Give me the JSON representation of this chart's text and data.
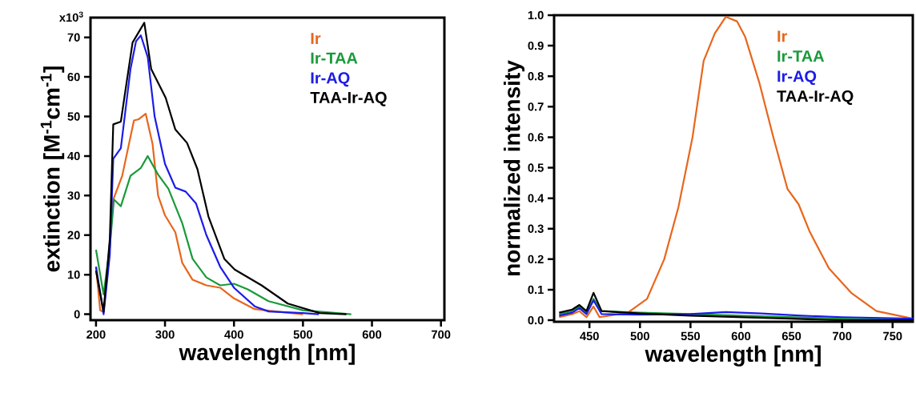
{
  "chart_data": [
    {
      "type": "line",
      "xlabel": "wavelength [nm]",
      "ylabel": "extinction [M$^{-1}$cm$^{-1}$]",
      "xlim": [
        192,
        705
      ],
      "ylim": [
        -1.5,
        75
      ],
      "xticks": [
        200,
        300,
        400,
        500,
        600,
        700
      ],
      "yticks": [
        0,
        10,
        20,
        30,
        40,
        50,
        60,
        70
      ],
      "annotations": [
        "x10$^{3}$"
      ],
      "legend": "top right",
      "line_style": "solid",
      "series": [
        {
          "name": "Ir",
          "color": "#e8661c",
          "x": [
            200,
            206,
            211,
            220,
            225,
            238,
            255,
            262,
            272,
            282,
            290,
            300,
            315,
            325,
            340,
            360,
            380,
            400,
            430,
            460,
            500
          ],
          "values": [
            12,
            1,
            0.5,
            18,
            29,
            35,
            49,
            49.3,
            50.7,
            43,
            30,
            25,
            20.7,
            13,
            8.7,
            7.3,
            6.7,
            4,
            1.3,
            0.7,
            0
          ]
        },
        {
          "name": "Ir-TAA",
          "color": "#1a9a3a",
          "x": [
            200,
            211,
            220,
            226,
            236,
            250,
            265,
            275,
            290,
            305,
            325,
            340,
            360,
            380,
            400,
            420,
            450,
            500,
            570
          ],
          "values": [
            16.3,
            5,
            17,
            29,
            27.3,
            35,
            37,
            40,
            35.3,
            31.7,
            23,
            14,
            9.3,
            7.3,
            7.7,
            6.3,
            3.3,
            1,
            0
          ]
        },
        {
          "name": "Ir-AQ",
          "color": "#1c1ce8",
          "x": [
            200,
            211,
            220,
            225,
            236,
            250,
            258,
            265,
            275,
            285,
            300,
            315,
            330,
            345,
            360,
            380,
            400,
            430,
            450,
            500,
            523
          ],
          "values": [
            12,
            0,
            15,
            39.3,
            42,
            62,
            69,
            70.5,
            65,
            50,
            38,
            32,
            31,
            28,
            20,
            12,
            6.7,
            2,
            0.7,
            0.3,
            0
          ]
        },
        {
          "name": "TAA-Ir-AQ",
          "color": "#000000",
          "x": [
            200,
            211,
            220,
            225,
            236,
            243,
            253,
            270,
            280,
            301,
            315,
            332,
            347,
            363,
            386,
            401,
            440,
            478,
            524,
            563
          ],
          "values": [
            11,
            0.7,
            19,
            48,
            48.7,
            57,
            68.7,
            73.7,
            62,
            54.7,
            46.7,
            43.3,
            36.7,
            24.7,
            14,
            11.3,
            7.3,
            2.7,
            0.3,
            0
          ]
        }
      ]
    },
    {
      "type": "line",
      "xlabel": "wavelength [nm]",
      "ylabel": "normalized intensity",
      "xlim": [
        415,
        770
      ],
      "ylim": [
        -0.005,
        1.0
      ],
      "xticks": [
        450,
        500,
        550,
        600,
        650,
        700,
        750
      ],
      "yticks": [
        {
          "value": 0,
          "label": "0.0"
        },
        0.1,
        0.2,
        0.3,
        0.4,
        0.5,
        0.6,
        0.7,
        0.8,
        0.9,
        {
          "value": 1,
          "label": "1.0"
        }
      ],
      "legend": "top right",
      "line_style": "solid",
      "series": [
        {
          "name": "Ir",
          "color": "#e8661c",
          "x": [
            420,
            433,
            440,
            447,
            454,
            460,
            488,
            507,
            524,
            538,
            552,
            563,
            574,
            585,
            596,
            604,
            618,
            632,
            646,
            657,
            668,
            687,
            709,
            734,
            770
          ],
          "values": [
            0.01,
            0.02,
            0.03,
            0.01,
            0.045,
            0.01,
            0.025,
            0.07,
            0.2,
            0.37,
            0.6,
            0.85,
            0.94,
            0.995,
            0.98,
            0.93,
            0.78,
            0.6,
            0.43,
            0.38,
            0.29,
            0.17,
            0.09,
            0.03,
            0.005
          ]
        },
        {
          "name": "Ir-TAA",
          "color": "#1a9a3a",
          "x": [
            420,
            433,
            440,
            447,
            454,
            462,
            500,
            550,
            600,
            650,
            700,
            770
          ],
          "values": [
            0.02,
            0.03,
            0.045,
            0.025,
            0.07,
            0.03,
            0.025,
            0.02,
            0.015,
            0.01,
            0.005,
            0.002
          ]
        },
        {
          "name": "Ir-AQ",
          "color": "#1c1ce8",
          "x": [
            420,
            433,
            440,
            447,
            454,
            462,
            500,
            550,
            585,
            620,
            660,
            700,
            770
          ],
          "values": [
            0.015,
            0.025,
            0.04,
            0.02,
            0.065,
            0.02,
            0.018,
            0.02,
            0.027,
            0.022,
            0.015,
            0.01,
            0.005
          ]
        },
        {
          "name": "TAA-Ir-AQ",
          "color": "#000000",
          "x": [
            420,
            433,
            440,
            447,
            454,
            462,
            500,
            550,
            600,
            650,
            700,
            770
          ],
          "values": [
            0.025,
            0.035,
            0.05,
            0.03,
            0.09,
            0.03,
            0.022,
            0.015,
            0.01,
            0.005,
            0.0,
            0.0
          ]
        }
      ]
    }
  ]
}
